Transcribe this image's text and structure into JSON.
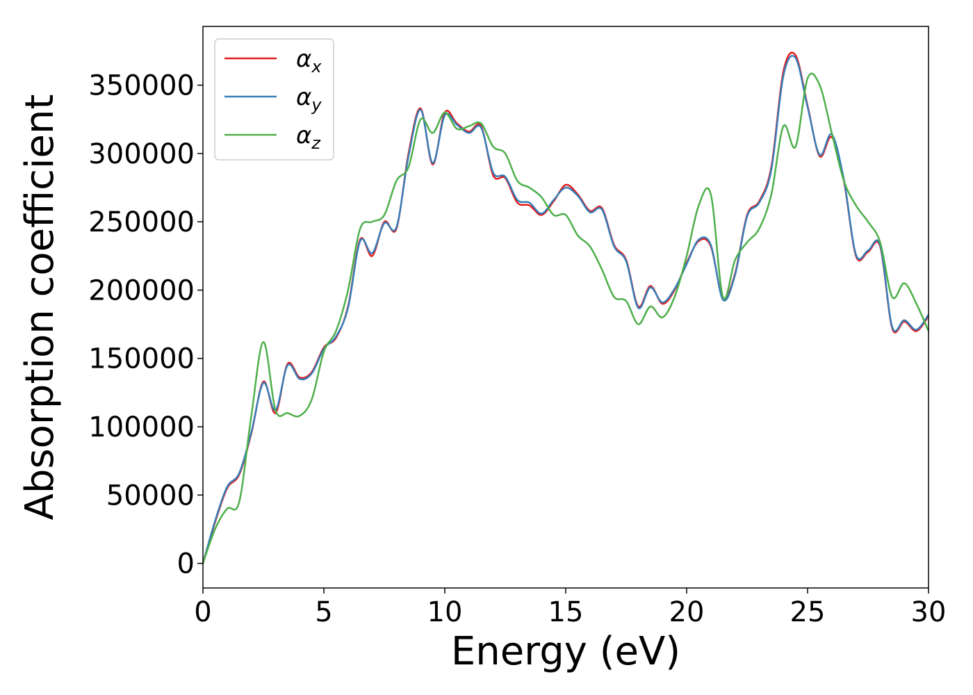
{
  "chart_data": {
    "type": "line",
    "xlabel": "Energy (eV)",
    "ylabel": "Absorption coefficient",
    "xlim": [
      0,
      30
    ],
    "ylim": [
      -18000,
      393000
    ],
    "x_ticks": [
      "0",
      "5",
      "10",
      "15",
      "20",
      "25",
      "30"
    ],
    "y_ticks": [
      "0",
      "50000",
      "100000",
      "150000",
      "200000",
      "250000",
      "300000",
      "350000"
    ],
    "grid": false,
    "legend_position": "top-left",
    "series": [
      {
        "name": "α_x",
        "symbol": "α",
        "subscript": "x",
        "color": "#e41a1c",
        "x": [
          0,
          0.5,
          1,
          1.5,
          2,
          2.5,
          3,
          3.5,
          4,
          4.5,
          5,
          5.5,
          6,
          6.5,
          7,
          7.5,
          8,
          8.5,
          9,
          9.5,
          10,
          10.5,
          11,
          11.5,
          12,
          12.5,
          13,
          13.5,
          14,
          14.5,
          15,
          15.5,
          16,
          16.5,
          17,
          17.5,
          18,
          18.5,
          19,
          19.5,
          20,
          20.5,
          21,
          21.5,
          22,
          22.5,
          23,
          23.5,
          24,
          24.5,
          25,
          25.5,
          26,
          26.5,
          27,
          27.5,
          28,
          28.5,
          29,
          29.5,
          30
        ],
        "y": [
          0,
          30000,
          55000,
          65000,
          95000,
          133000,
          110000,
          146000,
          136000,
          140000,
          158000,
          165000,
          188000,
          237000,
          225000,
          250000,
          245000,
          300000,
          333000,
          292000,
          330000,
          322000,
          316000,
          320000,
          284000,
          282000,
          264000,
          262000,
          255000,
          265000,
          277000,
          270000,
          258000,
          260000,
          233000,
          222000,
          188000,
          203000,
          190000,
          200000,
          220000,
          236000,
          232000,
          194000,
          212000,
          255000,
          265000,
          290000,
          360000,
          372000,
          335000,
          298000,
          312000,
          280000,
          225000,
          228000,
          232000,
          172000,
          177000,
          170000,
          181000
        ]
      },
      {
        "name": "α_y",
        "symbol": "α",
        "subscript": "y",
        "color": "#377eb8",
        "x": [
          0,
          0.5,
          1,
          1.5,
          2,
          2.5,
          3,
          3.5,
          4,
          4.5,
          5,
          5.5,
          6,
          6.5,
          7,
          7.5,
          8,
          8.5,
          9,
          9.5,
          10,
          10.5,
          11,
          11.5,
          12,
          12.5,
          13,
          13.5,
          14,
          14.5,
          15,
          15.5,
          16,
          16.5,
          17,
          17.5,
          18,
          18.5,
          19,
          19.5,
          20,
          20.5,
          21,
          21.5,
          22,
          22.5,
          23,
          23.5,
          24,
          24.5,
          25,
          25.5,
          26,
          26.5,
          27,
          27.5,
          28,
          28.5,
          29,
          29.5,
          30
        ],
        "y": [
          0,
          31000,
          56000,
          66000,
          96000,
          132000,
          112000,
          145000,
          135000,
          139000,
          157000,
          166000,
          187000,
          236000,
          227000,
          249000,
          246000,
          298000,
          332000,
          293000,
          328000,
          321000,
          315000,
          319000,
          286000,
          283000,
          266000,
          264000,
          256000,
          266000,
          275000,
          269000,
          257000,
          259000,
          232000,
          221000,
          187000,
          202000,
          191000,
          201000,
          219000,
          237000,
          233000,
          193000,
          211000,
          254000,
          264000,
          288000,
          357000,
          370000,
          334000,
          299000,
          314000,
          281000,
          226000,
          229000,
          233000,
          173000,
          178000,
          171000,
          182000
        ]
      },
      {
        "name": "α_z",
        "symbol": "α",
        "subscript": "z",
        "color": "#4daf4a",
        "x": [
          0,
          0.5,
          1,
          1.5,
          2,
          2.5,
          3,
          3.5,
          4,
          4.5,
          5,
          5.5,
          6,
          6.5,
          7,
          7.5,
          8,
          8.5,
          9,
          9.5,
          10,
          10.5,
          11,
          11.5,
          12,
          12.5,
          13,
          13.5,
          14,
          14.5,
          15,
          15.5,
          16,
          16.5,
          17,
          17.5,
          18,
          18.5,
          19,
          19.5,
          20,
          20.5,
          21,
          21.5,
          22,
          22.5,
          23,
          23.5,
          24,
          24.5,
          25,
          25.5,
          26,
          26.5,
          27,
          27.5,
          28,
          28.5,
          29,
          29.5,
          30
        ],
        "y": [
          0,
          25000,
          40000,
          45000,
          108000,
          162000,
          112000,
          110000,
          108000,
          120000,
          155000,
          170000,
          200000,
          245000,
          250000,
          255000,
          280000,
          290000,
          325000,
          315000,
          330000,
          318000,
          320000,
          322000,
          305000,
          300000,
          280000,
          275000,
          268000,
          255000,
          255000,
          240000,
          232000,
          215000,
          195000,
          192000,
          175000,
          188000,
          180000,
          195000,
          225000,
          262000,
          270000,
          195000,
          222000,
          235000,
          245000,
          270000,
          320000,
          305000,
          355000,
          350000,
          315000,
          280000,
          262000,
          250000,
          235000,
          195000,
          205000,
          190000,
          170000
        ]
      }
    ]
  }
}
